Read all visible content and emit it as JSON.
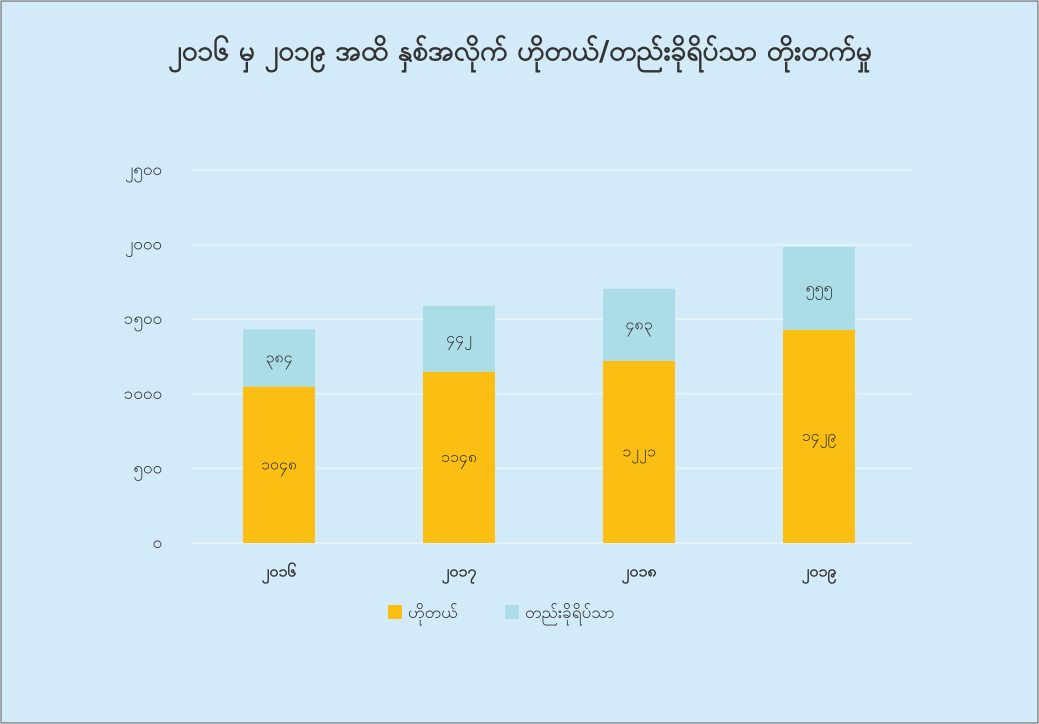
{
  "chart_data": {
    "type": "stacked_bar",
    "title": "၂၀၁၆ မှ ၂၀၁၉ အထိ နှစ်အလိုက် ဟိုတယ်/တည်းခိုရိပ်သာ တိုးတက်မှု",
    "categories": [
      "၂၀၁၆",
      "၂၀၁၇",
      "၂၀၁၈",
      "၂၀၁၉"
    ],
    "series": [
      {
        "name": "ဟိုတယ်",
        "color": "#fbbf14",
        "values": [
          1048,
          1148,
          1221,
          1429
        ],
        "value_labels": [
          "၁၀၄၈",
          "၁၁၄၈",
          "၁၂၂၁",
          "၁၄၂၉"
        ]
      },
      {
        "name": "တည်းခိုရိပ်သာ",
        "color": "#abdde9",
        "values": [
          384,
          442,
          483,
          555
        ],
        "value_labels": [
          "၃၈၄",
          "၄၄၂",
          "၄၈၃",
          "၅၅၅"
        ]
      }
    ],
    "ylim": [
      0,
      2500
    ],
    "yticks": [
      {
        "value": 0,
        "label": "၀"
      },
      {
        "value": 500,
        "label": "၅၀၀"
      },
      {
        "value": 1000,
        "label": "၁၀၀၀"
      },
      {
        "value": 1500,
        "label": "၁၅၀၀"
      },
      {
        "value": 2000,
        "label": "၂၀၀၀"
      },
      {
        "value": 2500,
        "label": "၂၅၀၀"
      }
    ],
    "grid": true,
    "legend": "bottom"
  }
}
